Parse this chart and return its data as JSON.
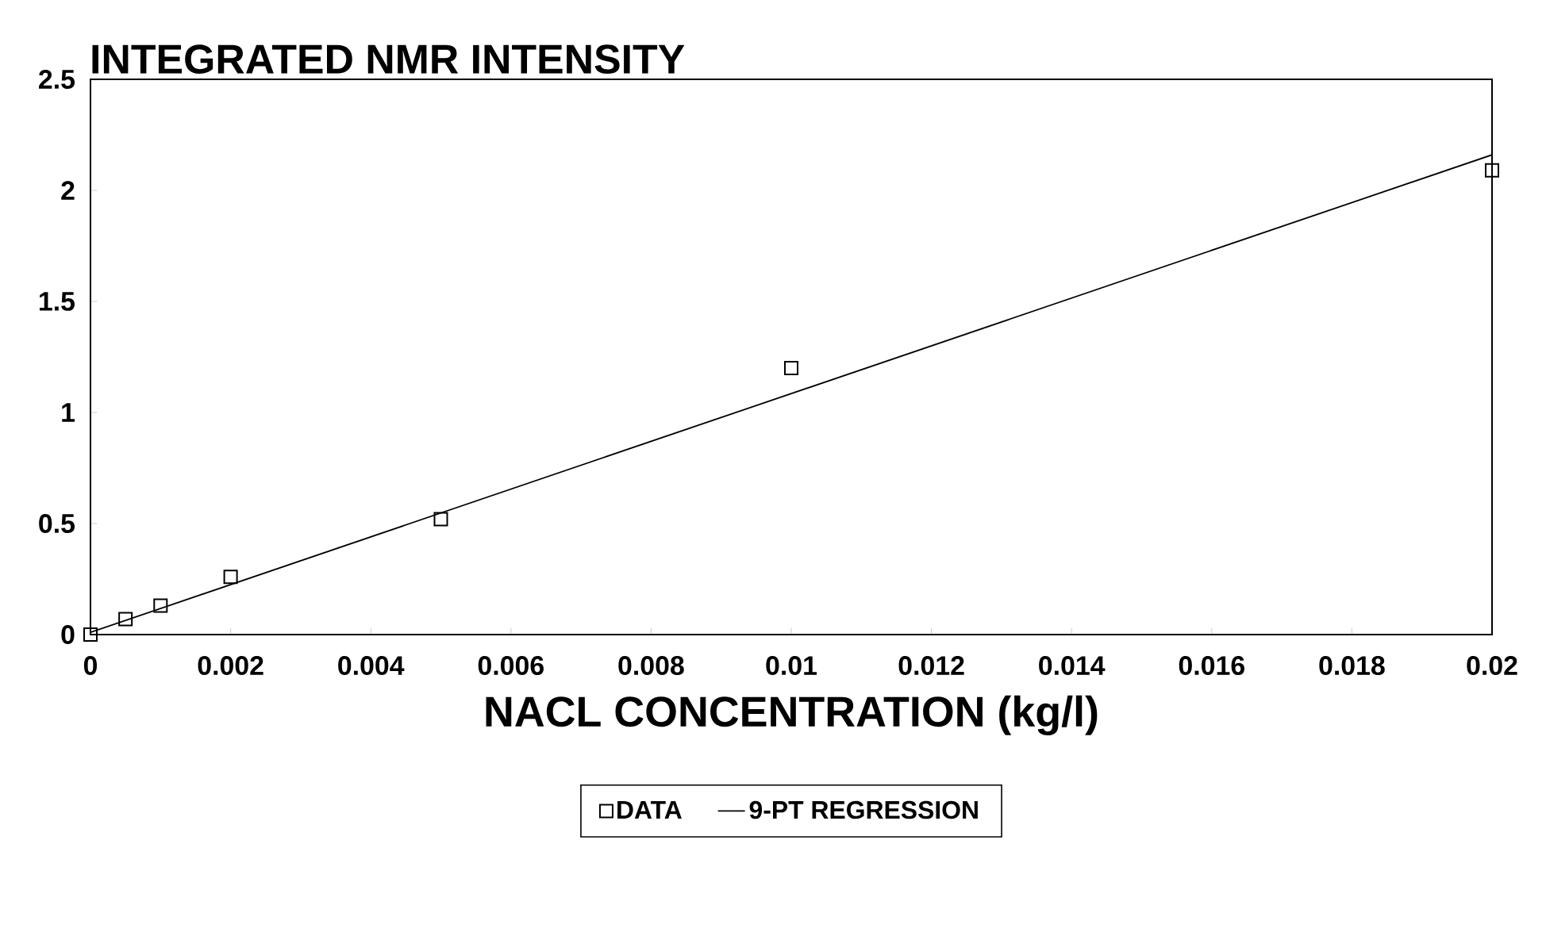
{
  "chart_data": {
    "type": "scatter",
    "title": "INTEGRATED NMR INTENSITY",
    "xlabel": "NACL CONCENTRATION (kg/l)",
    "xlim": [
      0,
      0.02
    ],
    "ylim": [
      0,
      2.5
    ],
    "xticks": [
      0,
      0.002,
      0.004,
      0.006,
      0.008,
      0.01,
      0.012,
      0.014,
      0.016,
      0.018,
      0.02
    ],
    "yticks": [
      0,
      0.5,
      1,
      1.5,
      2,
      2.5
    ],
    "grid": false,
    "legend": "bottom",
    "series": [
      {
        "name": "DATA",
        "marker": "square",
        "color": "#000000",
        "x": [
          0,
          0.0005,
          0.001,
          0.002,
          0.005,
          0.01,
          0.02
        ],
        "values": [
          0,
          0.07,
          0.13,
          0.26,
          0.52,
          1.2,
          2.09
        ]
      },
      {
        "name": "9-PT REGRESSION",
        "type": "line",
        "marker": "none",
        "line_style": "solid",
        "color": "#000000",
        "x": [
          0,
          0.02
        ],
        "values": [
          0.01,
          2.16
        ]
      }
    ]
  }
}
